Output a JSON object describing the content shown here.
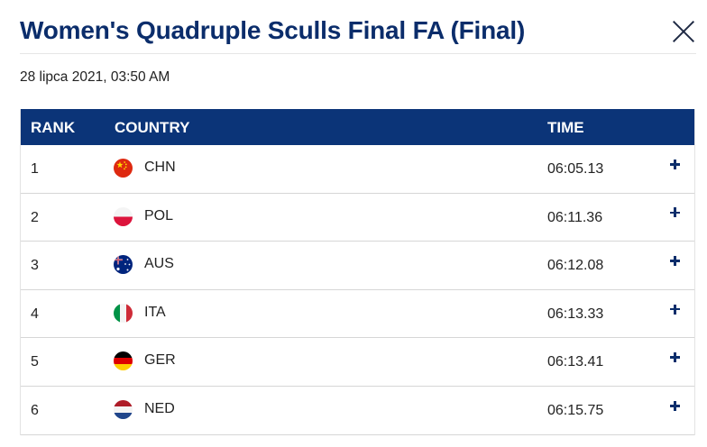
{
  "header": {
    "title": "Women's Quadruple Sculls Final FA (Final)",
    "close_icon": "close-icon"
  },
  "datetime": "28 lipca 2021, 03:50 AM",
  "table": {
    "columns": {
      "rank": "RANK",
      "country": "COUNTRY",
      "time": "TIME"
    },
    "header_color": "#0b3478",
    "rows": [
      {
        "rank": "1",
        "country": "CHN",
        "time": "06:05.13",
        "flag_icon": "china-flag-icon"
      },
      {
        "rank": "2",
        "country": "POL",
        "time": "06:11.36",
        "flag_icon": "poland-flag-icon"
      },
      {
        "rank": "3",
        "country": "AUS",
        "time": "06:12.08",
        "flag_icon": "australia-flag-icon"
      },
      {
        "rank": "4",
        "country": "ITA",
        "time": "06:13.33",
        "flag_icon": "italy-flag-icon"
      },
      {
        "rank": "5",
        "country": "GER",
        "time": "06:13.41",
        "flag_icon": "germany-flag-icon"
      },
      {
        "rank": "6",
        "country": "NED",
        "time": "06:15.75",
        "flag_icon": "netherlands-flag-icon"
      }
    ]
  }
}
